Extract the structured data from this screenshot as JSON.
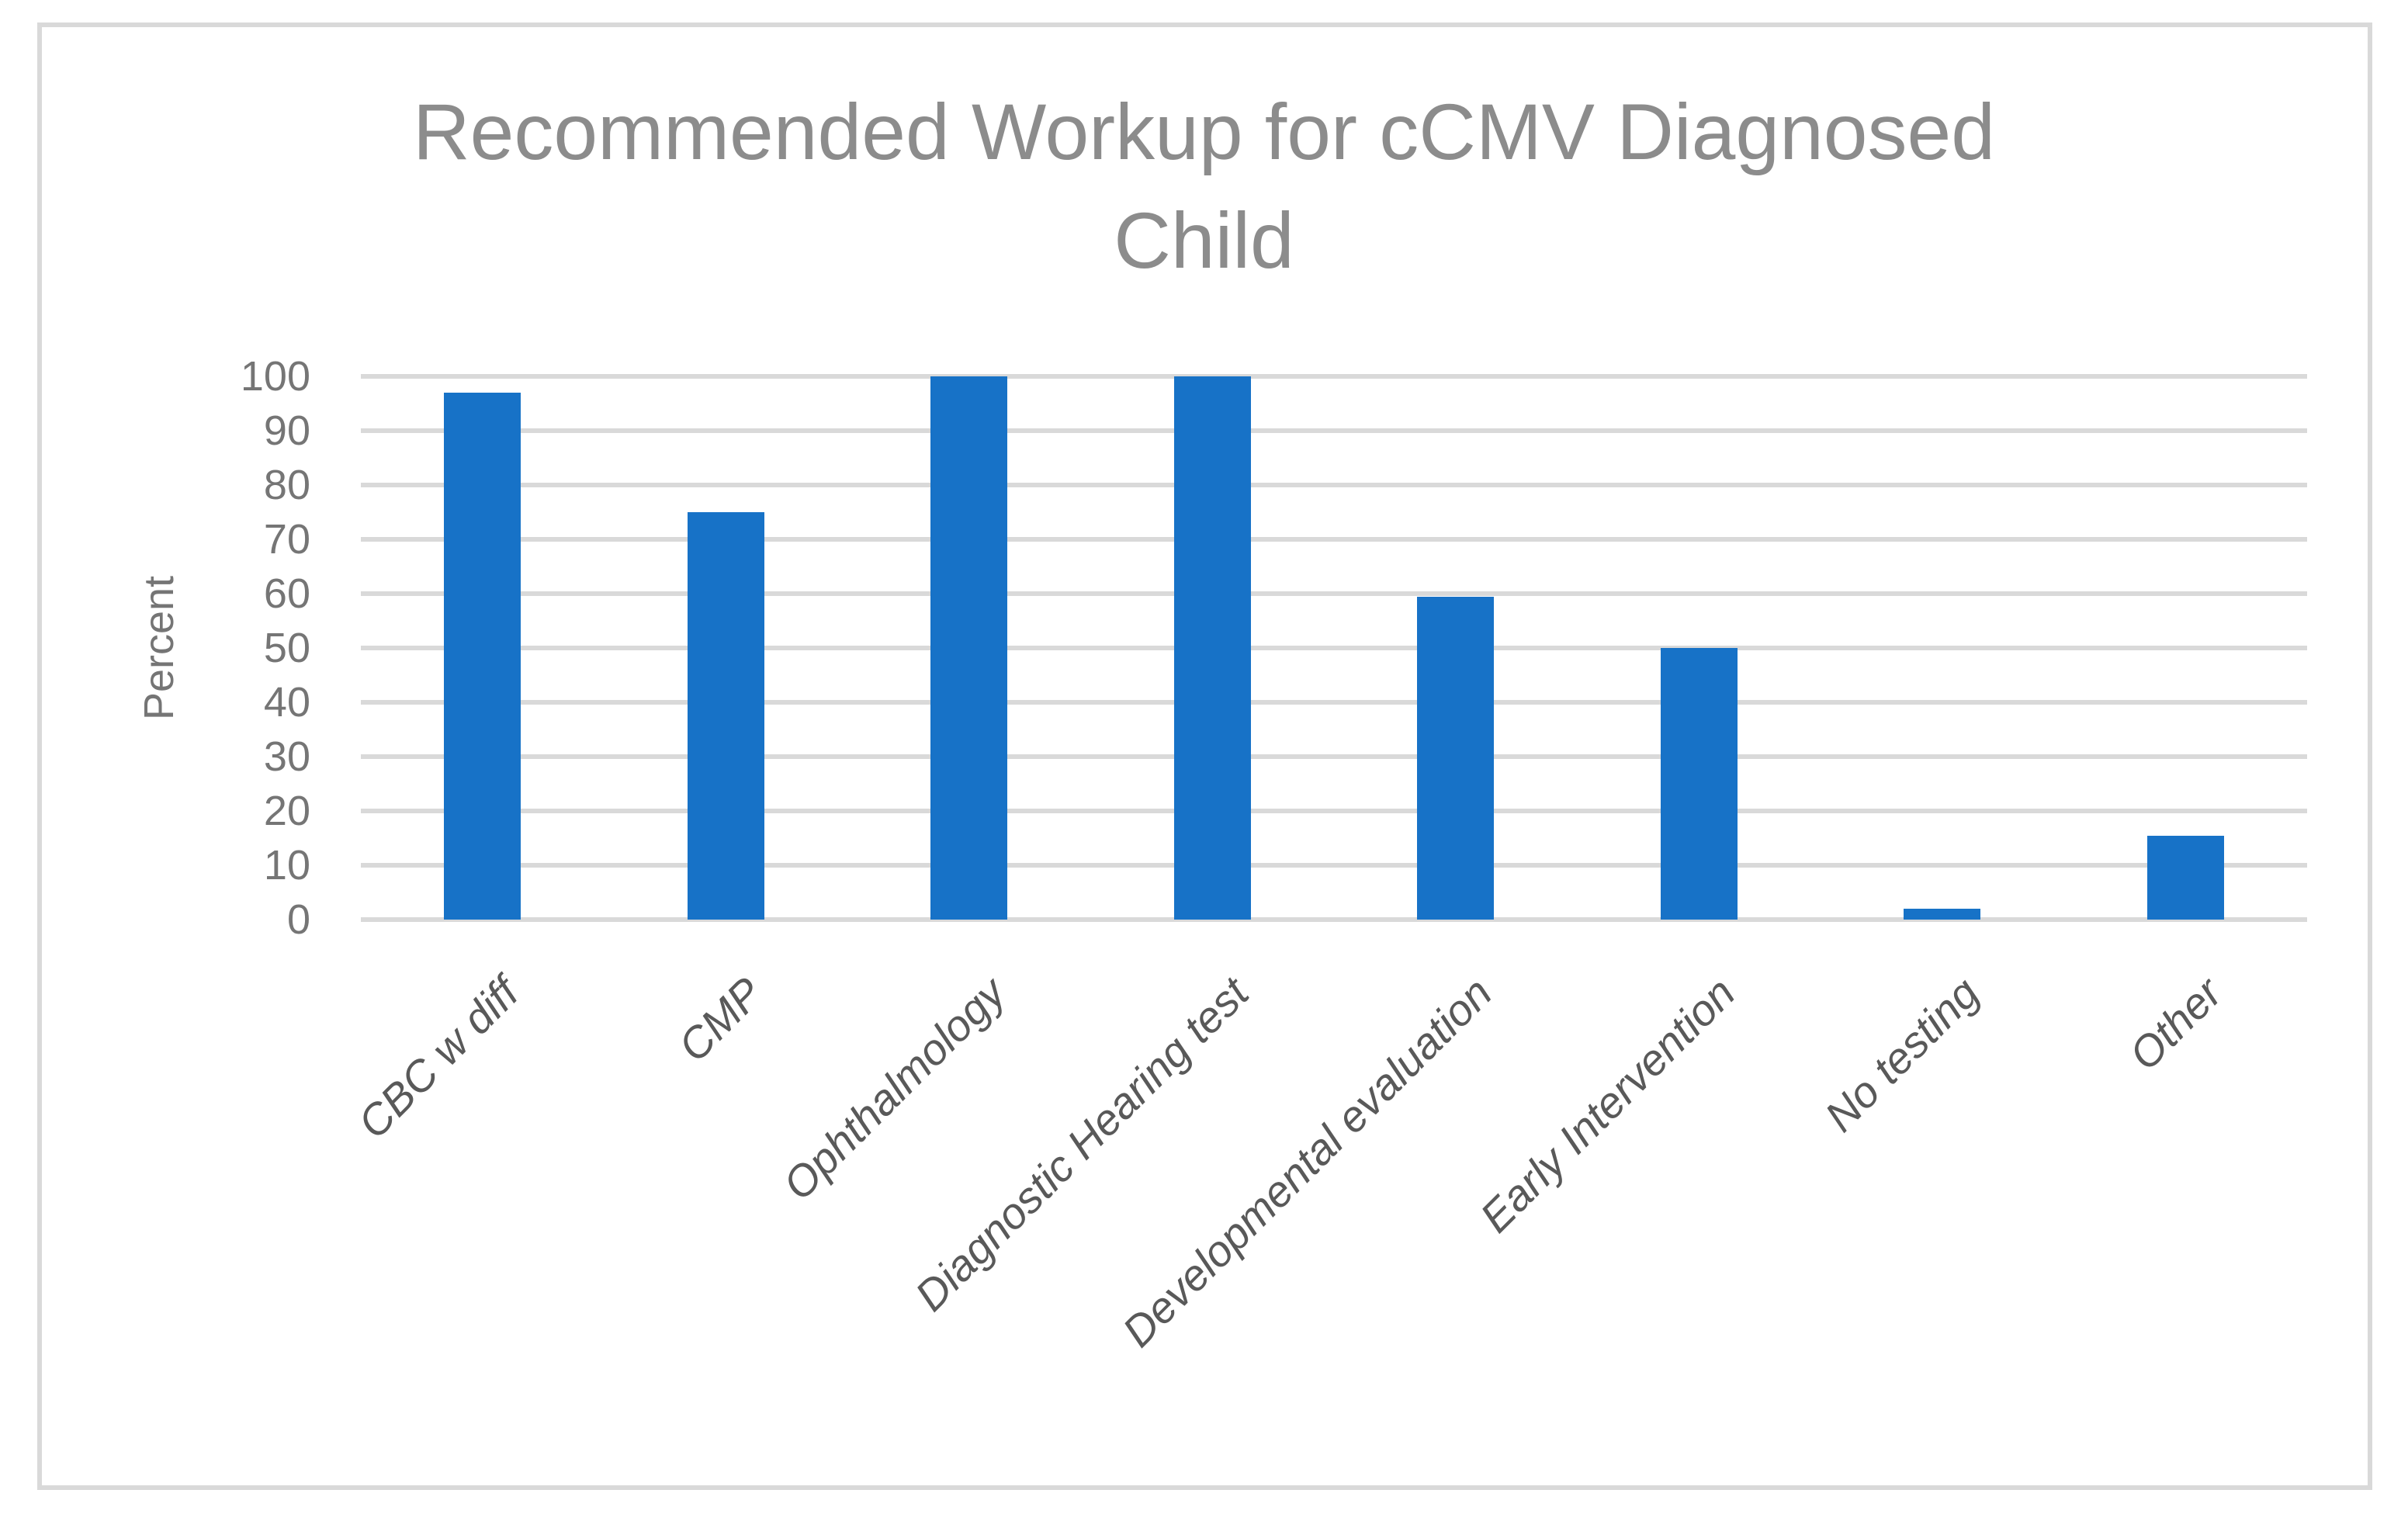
{
  "chart_data": {
    "type": "bar",
    "title": "Recommended Workup for cCMV Diagnosed Child",
    "title_lines": [
      "Recommended Workup for cCMV Diagnosed",
      "Child"
    ],
    "ylabel": "Percent",
    "xlabel": "",
    "categories": [
      "CBC w diff",
      "CMP",
      "Ophthalmology",
      "Diagnostic Hearing test",
      "Developmental evaluation",
      "Early Intervention",
      "No testing",
      "Other"
    ],
    "values": [
      97,
      75,
      100,
      100,
      59.5,
      50,
      2,
      15.5
    ],
    "ylim": [
      0,
      100
    ],
    "yticks": [
      0,
      10,
      20,
      30,
      40,
      50,
      60,
      70,
      80,
      90,
      100
    ],
    "grid": "horizontal",
    "legend_position": "none",
    "category_label_rotation_deg": 45,
    "category_label_style": "italic",
    "colors": {
      "bar": "#1772C7",
      "gridline": "#D9D9D9",
      "frame_border": "#D9D9D9",
      "title_text": "#8C8C8C",
      "axis_tick_text": "#757575",
      "category_text": "#595959",
      "background": "#FFFFFF"
    }
  }
}
